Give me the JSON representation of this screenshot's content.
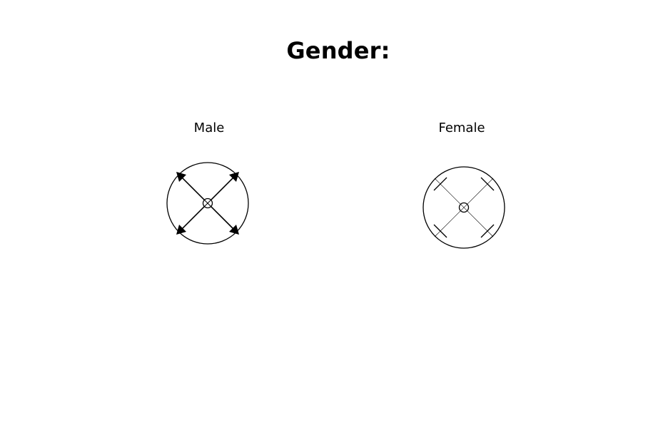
{
  "title": "Gender:",
  "options": [
    {
      "label": "Male",
      "symbol": "male-gender-icon"
    },
    {
      "label": "Female",
      "symbol": "female-gender-icon"
    }
  ],
  "colors": {
    "background": "#ffffff",
    "foreground": "#000000"
  }
}
